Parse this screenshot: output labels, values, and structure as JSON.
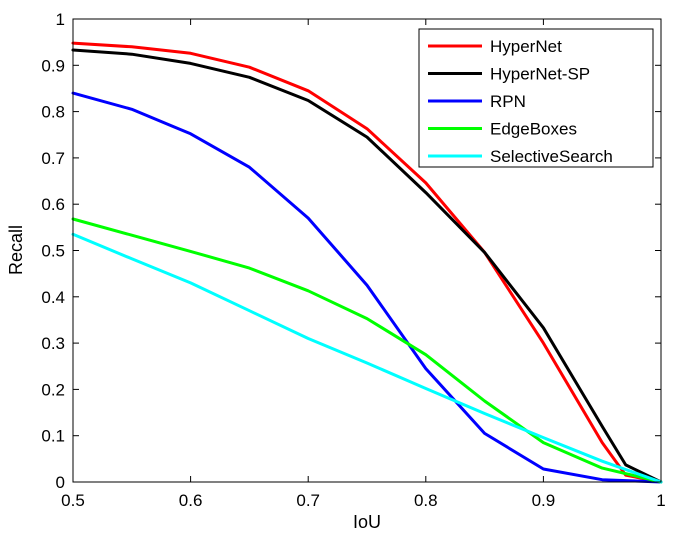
{
  "chart_data": {
    "type": "line",
    "title": "",
    "xlabel": "IoU",
    "ylabel": "Recall",
    "xlim": [
      0.5,
      1
    ],
    "ylim": [
      0,
      1
    ],
    "grid": false,
    "legend_position": "top-right",
    "x_ticks": [
      "0.5",
      "0.6",
      "0.7",
      "0.8",
      "0.9",
      "1"
    ],
    "y_ticks": [
      "0",
      "0.1",
      "0.2",
      "0.3",
      "0.4",
      "0.5",
      "0.6",
      "0.7",
      "0.8",
      "0.9",
      "1"
    ],
    "x": [
      0.5,
      0.55,
      0.6,
      0.65,
      0.7,
      0.75,
      0.8,
      0.85,
      0.9,
      0.95,
      1.0
    ],
    "series": [
      {
        "name": "HyperNet",
        "color": "#ff0000",
        "points": [
          [
            0.5,
            0.948
          ],
          [
            0.55,
            0.94
          ],
          [
            0.6,
            0.926
          ],
          [
            0.65,
            0.896
          ],
          [
            0.7,
            0.845
          ],
          [
            0.75,
            0.763
          ],
          [
            0.8,
            0.646
          ],
          [
            0.85,
            0.496
          ],
          [
            0.9,
            0.3
          ],
          [
            0.95,
            0.085
          ],
          [
            0.97,
            0.015
          ],
          [
            1.0,
            0.0
          ]
        ]
      },
      {
        "name": "HyperNet-SP",
        "color": "#000000",
        "points": [
          [
            0.5,
            0.933
          ],
          [
            0.55,
            0.924
          ],
          [
            0.6,
            0.904
          ],
          [
            0.65,
            0.874
          ],
          [
            0.7,
            0.824
          ],
          [
            0.75,
            0.745
          ],
          [
            0.8,
            0.625
          ],
          [
            0.85,
            0.496
          ],
          [
            0.9,
            0.333
          ],
          [
            0.95,
            0.12
          ],
          [
            0.97,
            0.037
          ],
          [
            1.0,
            0.0
          ]
        ]
      },
      {
        "name": "RPN",
        "color": "#0000ff",
        "points": [
          [
            0.5,
            0.84
          ],
          [
            0.55,
            0.805
          ],
          [
            0.6,
            0.752
          ],
          [
            0.65,
            0.68
          ],
          [
            0.7,
            0.57
          ],
          [
            0.75,
            0.425
          ],
          [
            0.8,
            0.245
          ],
          [
            0.85,
            0.105
          ],
          [
            0.9,
            0.028
          ],
          [
            0.95,
            0.005
          ],
          [
            1.0,
            0.0
          ]
        ]
      },
      {
        "name": "EdgeBoxes",
        "color": "#00ff00",
        "points": [
          [
            0.5,
            0.568
          ],
          [
            0.55,
            0.533
          ],
          [
            0.6,
            0.498
          ],
          [
            0.65,
            0.462
          ],
          [
            0.7,
            0.413
          ],
          [
            0.75,
            0.353
          ],
          [
            0.8,
            0.275
          ],
          [
            0.85,
            0.175
          ],
          [
            0.9,
            0.085
          ],
          [
            0.95,
            0.03
          ],
          [
            1.0,
            0.0
          ]
        ]
      },
      {
        "name": "SelectiveSearch",
        "color": "#00ffff",
        "points": [
          [
            0.5,
            0.535
          ],
          [
            0.55,
            0.482
          ],
          [
            0.6,
            0.43
          ],
          [
            0.65,
            0.37
          ],
          [
            0.7,
            0.31
          ],
          [
            0.75,
            0.257
          ],
          [
            0.8,
            0.202
          ],
          [
            0.85,
            0.148
          ],
          [
            0.9,
            0.096
          ],
          [
            0.95,
            0.045
          ],
          [
            1.0,
            0.0
          ]
        ]
      }
    ]
  }
}
